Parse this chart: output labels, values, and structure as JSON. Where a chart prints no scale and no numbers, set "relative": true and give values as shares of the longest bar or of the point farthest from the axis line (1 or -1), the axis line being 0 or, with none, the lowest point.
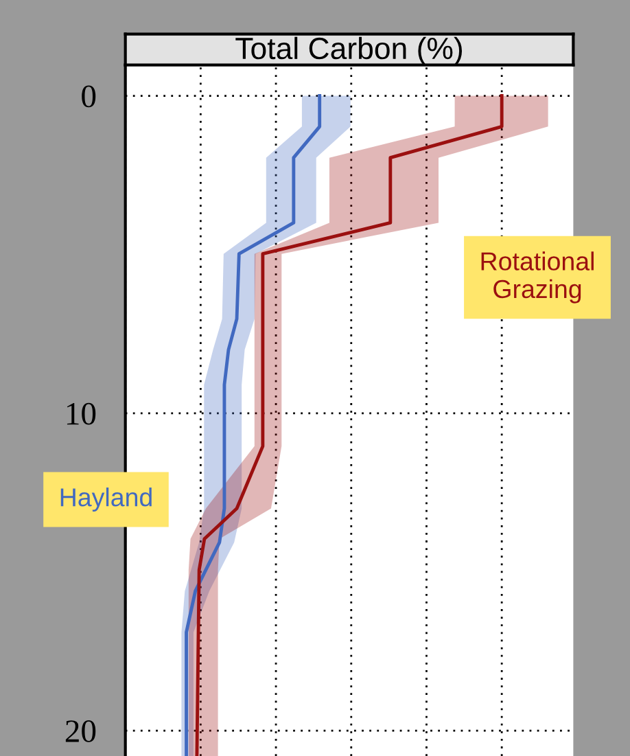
{
  "chart_data": {
    "type": "line",
    "title": "Total Carbon (%)",
    "orientation": "horizontal",
    "relative": true,
    "ylim": [
      20.8,
      -0.97
    ],
    "yticks": [
      0,
      10,
      20
    ],
    "grid": true,
    "line_style": "solid",
    "marker": "none",
    "legend": false,
    "series": [
      {
        "name": "Hayland",
        "color": "#4169c0",
        "x": [
          0,
          0.97,
          1.95,
          4.0,
          4.98,
          7.03,
          8.0,
          9.1,
          13.0,
          14.07,
          15.6,
          16.9,
          20.8
        ],
        "values": [
          0.516,
          0.516,
          0.447,
          0.447,
          0.302,
          0.296,
          0.274,
          0.263,
          0.263,
          0.25,
          0.186,
          0.162,
          0.162
        ],
        "lower": [
          0.469,
          0.469,
          0.374,
          0.374,
          0.261,
          0.257,
          0.233,
          0.209,
          0.209,
          0.196,
          0.158,
          0.149,
          0.149
        ],
        "upper": [
          0.598,
          0.598,
          0.507,
          0.507,
          0.346,
          0.343,
          0.317,
          0.309,
          0.309,
          0.289,
          0.223,
          0.181,
          0.181
        ]
      },
      {
        "name": "Rotational Grazing",
        "color": "#9b1010",
        "x": [
          0,
          0.97,
          1.95,
          4.0,
          4.98,
          11.04,
          13.0,
          13.96,
          14.94,
          20.8
        ],
        "values": [
          1,
          1,
          0.704,
          0.704,
          0.365,
          0.365,
          0.296,
          0.21,
          0.196,
          0.19
        ],
        "lower": [
          0.875,
          0.875,
          0.542,
          0.542,
          0.343,
          0.343,
          0.214,
          0.173,
          0.168,
          0.168
        ],
        "upper": [
          1.123,
          1.123,
          0.832,
          0.832,
          0.415,
          0.415,
          0.387,
          0.25,
          0.246,
          0.246
        ]
      }
    ]
  }
}
